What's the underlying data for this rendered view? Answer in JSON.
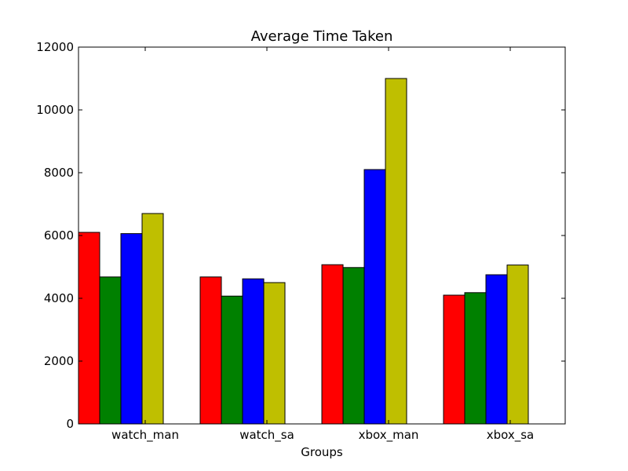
{
  "chart_data": {
    "type": "bar",
    "title": "Average Time Taken",
    "xlabel": "Groups",
    "ylabel": "",
    "categories": [
      "watch_man",
      "watch_sa",
      "xbox_man",
      "xbox_sa"
    ],
    "ylim": [
      0,
      12000
    ],
    "yticks": [
      0,
      2000,
      4000,
      6000,
      8000,
      10000,
      12000
    ],
    "grid": false,
    "series": [
      {
        "color": "#ff0000",
        "values": [
          6100,
          4680,
          5070,
          4100
        ]
      },
      {
        "color": "#008000",
        "values": [
          4680,
          4070,
          4980,
          4180
        ]
      },
      {
        "color": "#0000ff",
        "values": [
          6060,
          4620,
          8100,
          4750
        ]
      },
      {
        "color": "#bfbf00",
        "values": [
          6700,
          4500,
          11000,
          5060
        ]
      }
    ]
  }
}
